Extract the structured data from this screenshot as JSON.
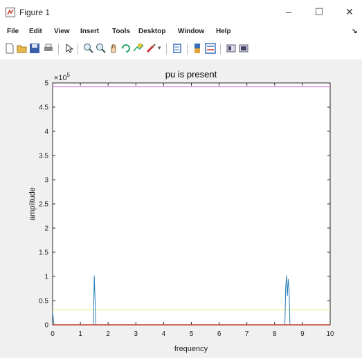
{
  "window": {
    "title": "Figure 1",
    "minimize_glyph": "–",
    "maximize_glyph": "☐",
    "close_glyph": "✕"
  },
  "menu": [
    "File",
    "Edit",
    "View",
    "Insert",
    "Tools",
    "Desktop",
    "Window",
    "Help"
  ],
  "toolbar_icons": [
    "new-figure-icon",
    "open-file-icon",
    "save-icon",
    "print-icon",
    "edit-plot-icon",
    "zoom-in-icon",
    "zoom-out-icon",
    "pan-icon",
    "rotate-icon",
    "data-cursor-icon",
    "brush-icon",
    "link-icon",
    "colorbar-icon",
    "legend-icon",
    "hide-plot-tools-icon",
    "show-plot-tools-icon"
  ],
  "chart_data": {
    "type": "line",
    "title": "pu is present",
    "xlabel": "frequency",
    "ylabel": "amplitude",
    "y_exponent_label": "×10",
    "y_exponent": "5",
    "xlim": [
      0,
      10
    ],
    "ylim": [
      0,
      5
    ],
    "x_ticks": [
      "0",
      "1",
      "2",
      "3",
      "4",
      "5",
      "6",
      "7",
      "8",
      "9",
      "10"
    ],
    "y_ticks": [
      "0",
      "0.5",
      "1",
      "1.5",
      "2",
      "2.5",
      "3",
      "3.5",
      "4",
      "4.5",
      "5"
    ],
    "grid": false,
    "colors": {
      "spectrum": "#2a7fba",
      "threshold": "#e070e0",
      "baseline": "#c0392b",
      "lower_line": "#e8e87a"
    },
    "series": [
      {
        "x": [
          0,
          0.02,
          0.05,
          1.47,
          1.5,
          1.53,
          1.56,
          8.37,
          8.4,
          8.43,
          8.46,
          8.49,
          8.52,
          8.55,
          10
        ],
        "y": [
          0.28,
          0.15,
          0,
          0,
          1.02,
          0.5,
          0,
          0,
          0.8,
          1.02,
          0.6,
          0.95,
          0.7,
          0,
          0
        ]
      },
      {
        "x": [
          0,
          10
        ],
        "y": [
          4.92,
          4.92
        ]
      },
      {
        "x": [
          0,
          10
        ],
        "y": [
          0,
          0
        ]
      },
      {
        "x": [
          0,
          10
        ],
        "y": [
          0.31,
          0.31
        ]
      }
    ]
  }
}
